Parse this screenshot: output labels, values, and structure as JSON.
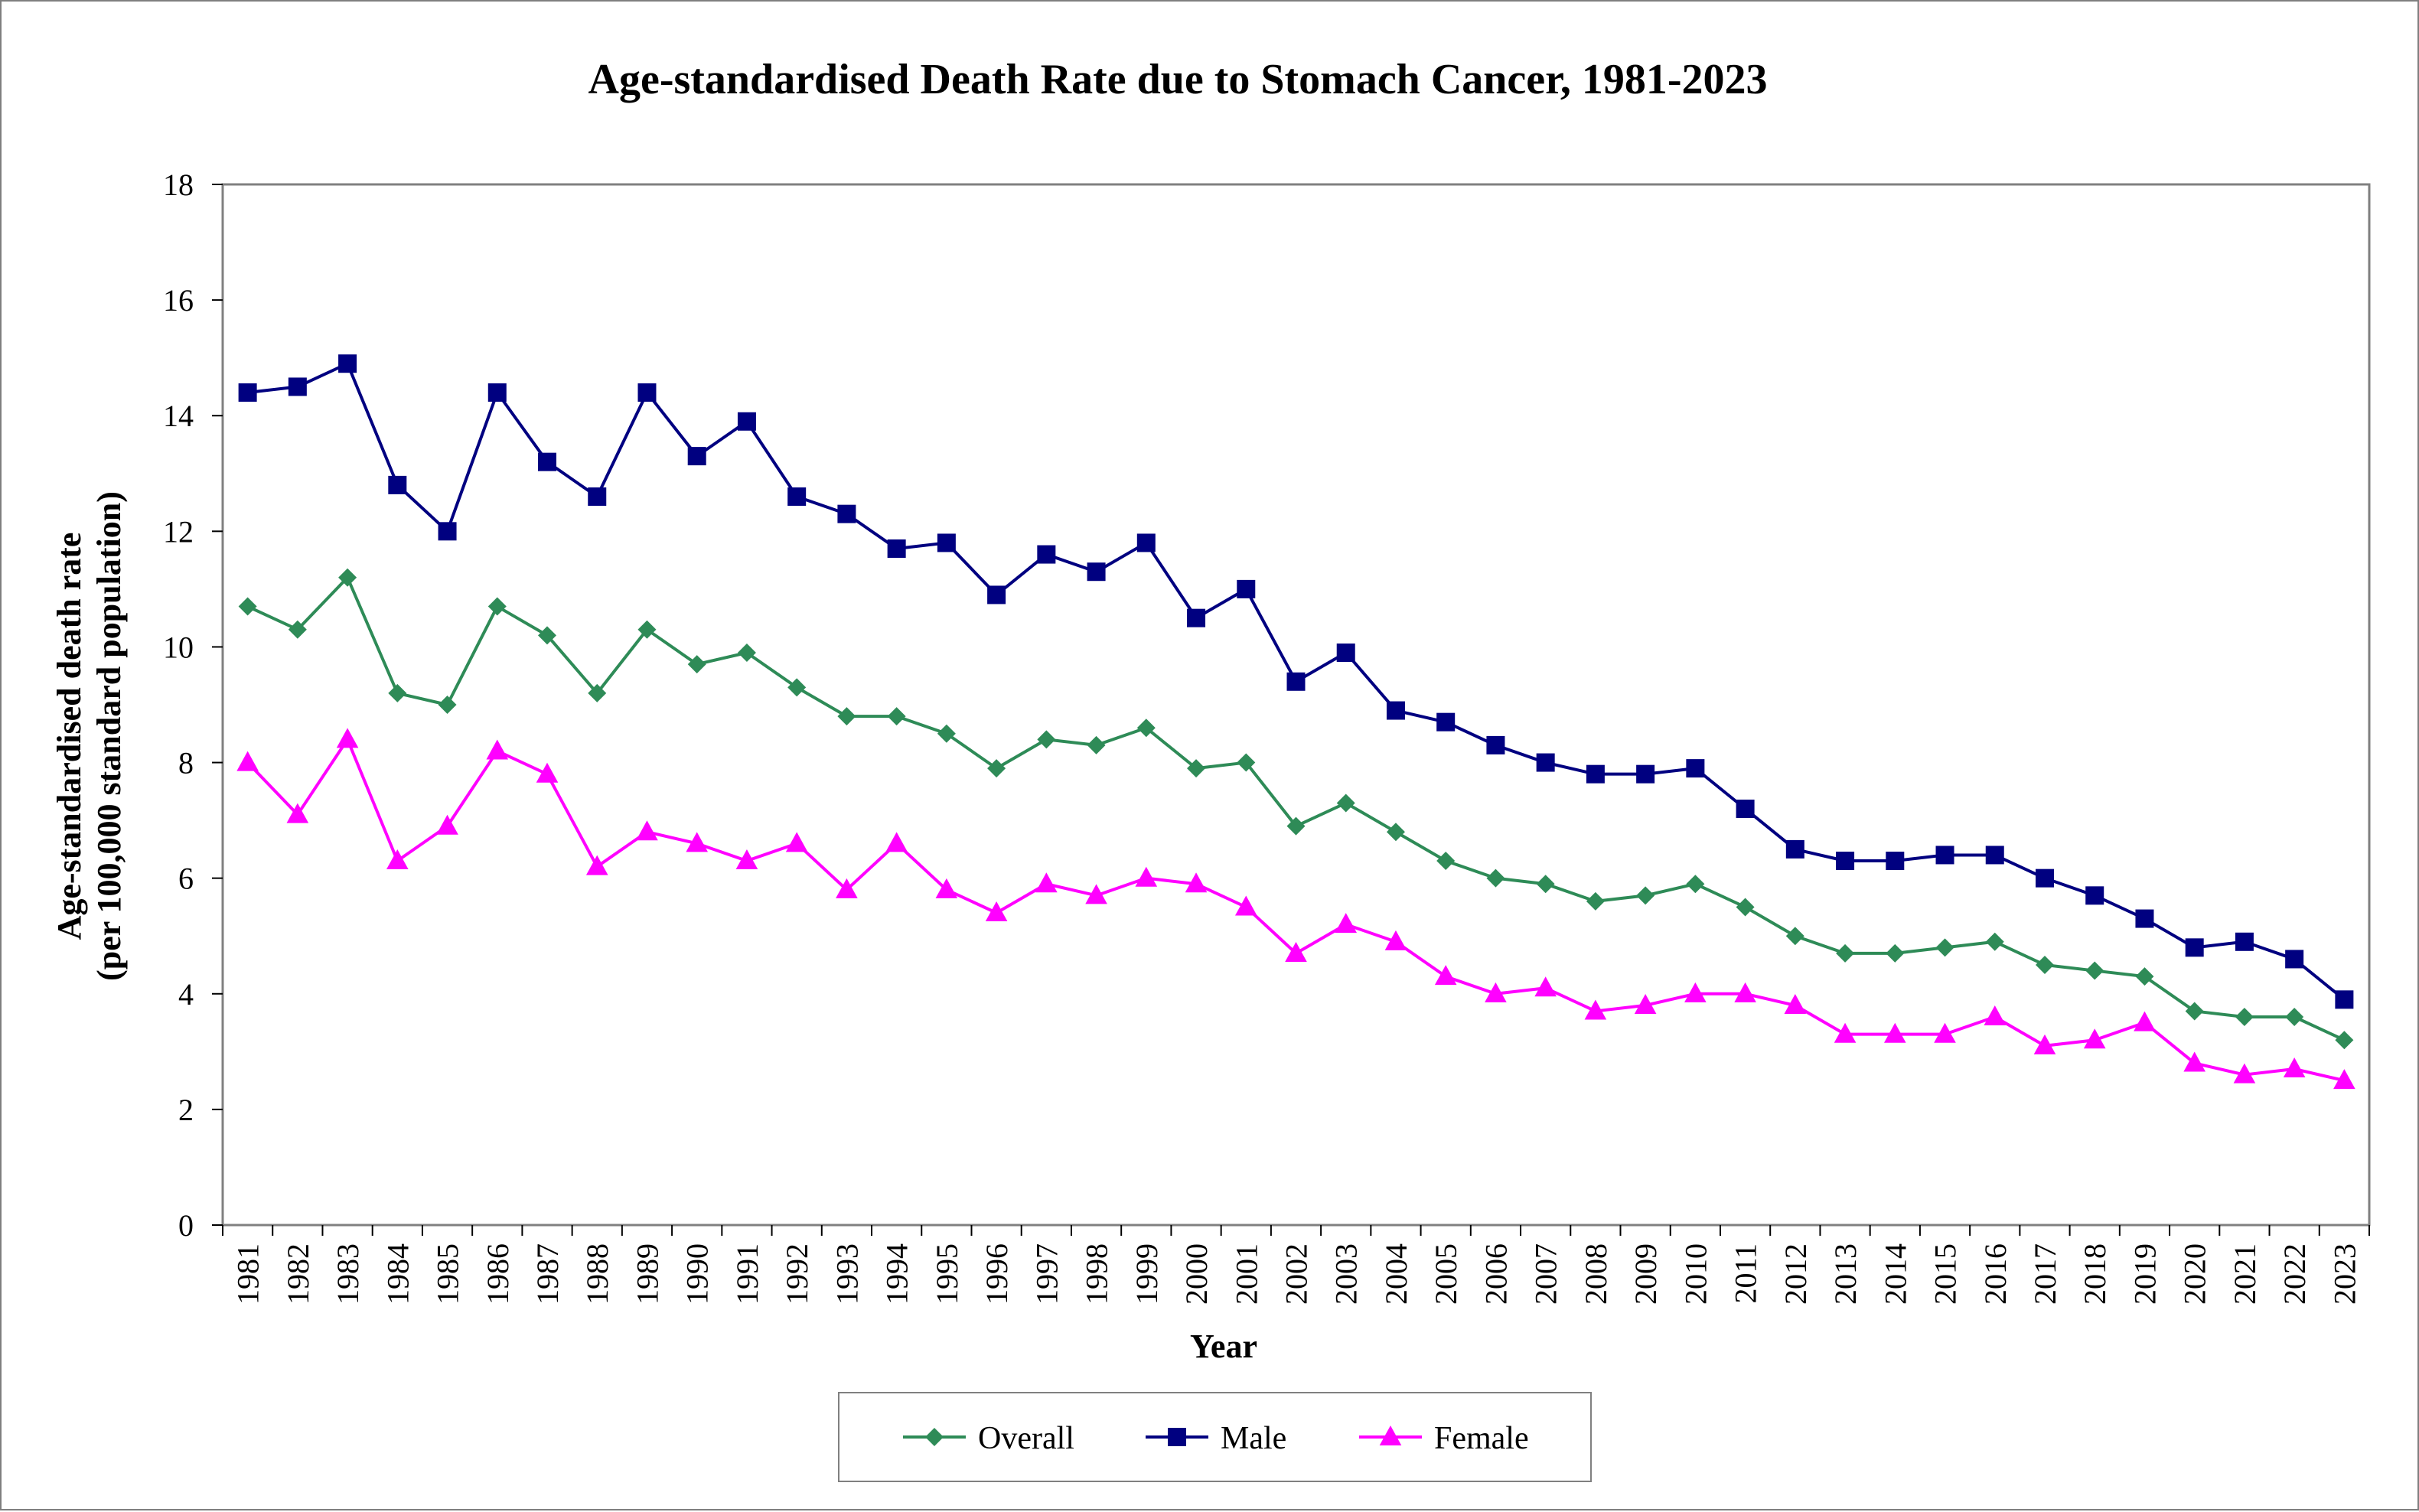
{
  "chart_data": {
    "type": "line",
    "title": "Age-standardised Death Rate due to Stomach Cancer, 1981-2023",
    "xlabel": "Year",
    "ylabel_line1": "Age-standardised death rate",
    "ylabel_line2": "(per 100,000 standard population)",
    "ylim": [
      0,
      18
    ],
    "yticks": [
      "0",
      "2",
      "4",
      "6",
      "8",
      "10",
      "12",
      "14",
      "16",
      "18"
    ],
    "grid": false,
    "legend_position": "bottom",
    "categories": [
      "1981",
      "1982",
      "1983",
      "1984",
      "1985",
      "1986",
      "1987",
      "1988",
      "1989",
      "1990",
      "1991",
      "1992",
      "1993",
      "1994",
      "1995",
      "1996",
      "1997",
      "1998",
      "1999",
      "2000",
      "2001",
      "2002",
      "2003",
      "2004",
      "2005",
      "2006",
      "2007",
      "2008",
      "2009",
      "2010",
      "2011",
      "2012",
      "2013",
      "2014",
      "2015",
      "2016",
      "2017",
      "2018",
      "2019",
      "2020",
      "2021",
      "2022",
      "2023"
    ],
    "series": [
      {
        "name": "Overall",
        "color": "#2e8b57",
        "marker": "diamond",
        "values": [
          10.7,
          10.3,
          11.2,
          9.2,
          9.0,
          10.7,
          10.2,
          9.2,
          10.3,
          9.7,
          9.9,
          9.3,
          8.8,
          8.8,
          8.5,
          7.9,
          8.4,
          8.3,
          8.6,
          7.9,
          8.0,
          6.9,
          7.3,
          6.8,
          6.3,
          6.0,
          5.9,
          5.6,
          5.7,
          5.9,
          5.5,
          5.0,
          4.7,
          4.7,
          4.8,
          4.9,
          4.5,
          4.4,
          4.3,
          3.7,
          3.6,
          3.6,
          3.2
        ]
      },
      {
        "name": "Male",
        "color": "#000080",
        "marker": "square",
        "values": [
          14.4,
          14.5,
          14.9,
          12.8,
          12.0,
          14.4,
          13.2,
          12.6,
          14.4,
          13.3,
          13.9,
          12.6,
          12.3,
          11.7,
          11.8,
          10.9,
          11.6,
          11.3,
          11.8,
          10.5,
          11.0,
          9.4,
          9.9,
          8.9,
          8.7,
          8.3,
          8.0,
          7.8,
          7.8,
          7.9,
          7.2,
          6.5,
          6.3,
          6.3,
          6.4,
          6.4,
          6.0,
          5.7,
          5.3,
          4.8,
          4.9,
          4.6,
          3.9
        ]
      },
      {
        "name": "Female",
        "color": "#ff00ff",
        "marker": "triangle",
        "values": [
          8.0,
          7.1,
          8.4,
          6.3,
          6.9,
          8.2,
          7.8,
          6.2,
          6.8,
          6.6,
          6.3,
          6.6,
          5.8,
          6.6,
          5.8,
          5.4,
          5.9,
          5.7,
          6.0,
          5.9,
          5.5,
          4.7,
          5.2,
          4.9,
          4.3,
          4.0,
          4.1,
          3.7,
          3.8,
          4.0,
          4.0,
          3.8,
          3.3,
          3.3,
          3.3,
          3.6,
          3.1,
          3.2,
          3.5,
          2.8,
          2.6,
          2.7,
          2.5
        ]
      }
    ]
  }
}
